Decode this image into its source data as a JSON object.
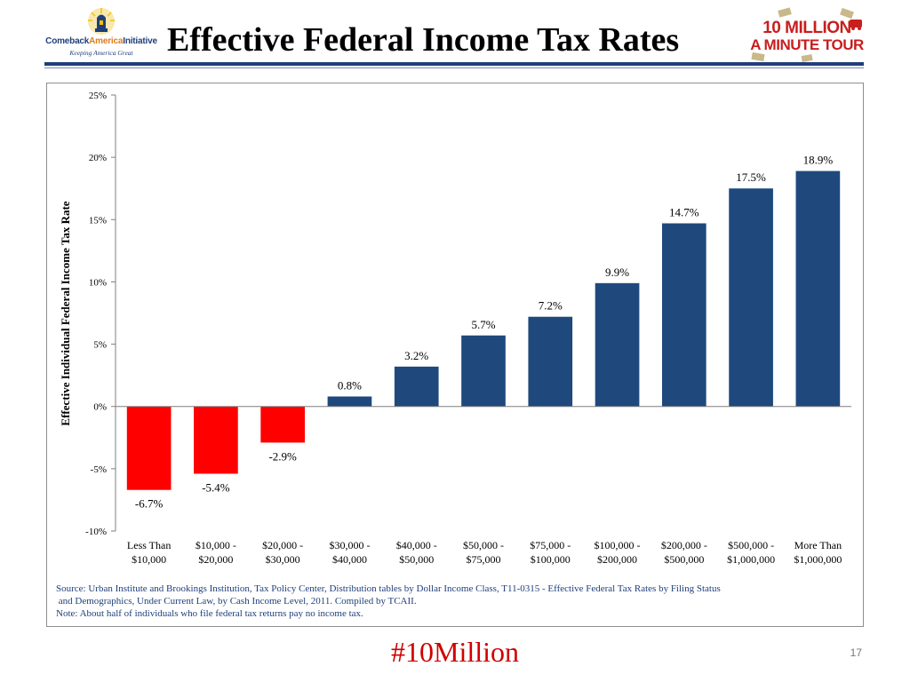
{
  "header": {
    "title": "Effective Federal Income Tax Rates",
    "left_logo": {
      "line1_a": "Comeback",
      "line1_b": "America",
      "line1_c": "Initiative",
      "tagline": "Keeping America Great"
    },
    "right_logo": {
      "line1": "10 MILLION",
      "line2": "A MINUTE TOUR"
    }
  },
  "colors": {
    "positive": "#1f497d",
    "negative": "#ff0000",
    "title_rule": "#1f3f7a",
    "hashtag": "#d10000"
  },
  "chart_data": {
    "type": "bar",
    "title": "",
    "xlabel": "",
    "ylabel": "Effective Individual Federal Income Tax Rate",
    "ylim": [
      -10,
      25
    ],
    "yticks": [
      -10,
      -5,
      0,
      5,
      10,
      15,
      20,
      25
    ],
    "ytick_labels": [
      "-10%",
      "-5%",
      "0%",
      "5%",
      "10%",
      "15%",
      "20%",
      "25%"
    ],
    "grid": false,
    "legend": "none",
    "categories": [
      [
        "Less Than",
        "$10,000"
      ],
      [
        "$10,000 -",
        "$20,000"
      ],
      [
        "$20,000 -",
        "$30,000"
      ],
      [
        "$30,000 -",
        "$40,000"
      ],
      [
        "$40,000 -",
        "$50,000"
      ],
      [
        "$50,000 -",
        "$75,000"
      ],
      [
        "$75,000 -",
        "$100,000"
      ],
      [
        "$100,000 -",
        "$200,000"
      ],
      [
        "$200,000 -",
        "$500,000"
      ],
      [
        "$500,000 -",
        "$1,000,000"
      ],
      [
        "More Than",
        "$1,000,000"
      ]
    ],
    "values": [
      -6.7,
      -5.4,
      -2.9,
      0.8,
      3.2,
      5.7,
      7.2,
      9.9,
      14.7,
      17.5,
      18.9
    ],
    "data_labels": [
      "-6.7%",
      "-5.4%",
      "-2.9%",
      "0.8%",
      "3.2%",
      "5.7%",
      "7.2%",
      "9.9%",
      "14.7%",
      "17.5%",
      "18.9%"
    ]
  },
  "source": {
    "line1": "Source: Urban Institute and Brookings Institution, Tax Policy Center, Distribution tables by Dollar Income Class, T11-0315 - Effective Federal Tax Rates by Filing Status",
    "line2": " and Demographics, Under Current Law, by Cash Income Level, 2011. Compiled by TCAII.",
    "line3": "Note: About half of individuals who file federal tax returns pay no income tax."
  },
  "footer": {
    "hashtag": "#10Million",
    "page_number": "17"
  }
}
